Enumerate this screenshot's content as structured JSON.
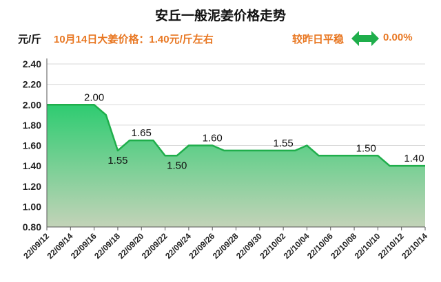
{
  "header": {
    "title": "安丘一般泥姜价格走势",
    "unit": "元/斤",
    "headline": "10月14日大姜价格：1.40元/斤左右",
    "change_label": "较昨日平稳",
    "change_value": "0.00%"
  },
  "colors": {
    "line": "#1fae4b",
    "fill_top": "#2ecc71",
    "fill_bottom": "#c3d3b8",
    "accent": "#e87722",
    "grid": "#d9d9d9"
  },
  "icons": {
    "change": "double-arrow-icon"
  },
  "chart_data": {
    "type": "area",
    "title": "安丘一般泥姜价格走势",
    "ylabel": "元/斤",
    "ylim": [
      0.8,
      2.4
    ],
    "yticks": [
      "0.80",
      "1.00",
      "1.20",
      "1.40",
      "1.60",
      "1.80",
      "2.00",
      "2.20",
      "2.40"
    ],
    "xticks": [
      "22/09/12",
      "22/09/14",
      "22/09/16",
      "22/09/18",
      "22/09/20",
      "22/09/22",
      "22/09/24",
      "22/09/26",
      "22/09/28",
      "22/09/30",
      "22/10/02",
      "22/10/04",
      "22/10/06",
      "22/10/08",
      "22/10/10",
      "22/10/12",
      "22/10/14"
    ],
    "grid": true,
    "series": [
      {
        "x": [
          "22/09/12",
          "22/09/13",
          "22/09/14",
          "22/09/15",
          "22/09/16",
          "22/09/17",
          "22/09/18",
          "22/09/19",
          "22/09/20",
          "22/09/21",
          "22/09/22",
          "22/09/23",
          "22/09/24",
          "22/09/25",
          "22/09/26",
          "22/09/27",
          "22/09/28",
          "22/09/29",
          "22/09/30",
          "22/10/01",
          "22/10/02",
          "22/10/03",
          "22/10/04",
          "22/10/05",
          "22/10/06",
          "22/10/07",
          "22/10/08",
          "22/10/09",
          "22/10/10",
          "22/10/11",
          "22/10/12",
          "22/10/13",
          "22/10/14"
        ],
        "values": [
          2.0,
          2.0,
          2.0,
          2.0,
          2.0,
          1.9,
          1.55,
          1.65,
          1.65,
          1.65,
          1.5,
          1.5,
          1.6,
          1.6,
          1.6,
          1.55,
          1.55,
          1.55,
          1.55,
          1.55,
          1.55,
          1.55,
          1.6,
          1.5,
          1.5,
          1.5,
          1.5,
          1.5,
          1.5,
          1.4,
          1.4,
          1.4,
          1.4
        ]
      }
    ],
    "data_labels": [
      {
        "x": "22/09/16",
        "text": "2.00",
        "pos": "above"
      },
      {
        "x": "22/09/18",
        "text": "1.55",
        "pos": "below"
      },
      {
        "x": "22/09/20",
        "text": "1.65",
        "pos": "above"
      },
      {
        "x": "22/09/23",
        "text": "1.50",
        "pos": "below"
      },
      {
        "x": "22/09/26",
        "text": "1.60",
        "pos": "above"
      },
      {
        "x": "22/10/02",
        "text": "1.55",
        "pos": "above"
      },
      {
        "x": "22/10/09",
        "text": "1.50",
        "pos": "above"
      },
      {
        "x": "22/10/14",
        "text": "1.40",
        "pos": "above"
      }
    ]
  }
}
